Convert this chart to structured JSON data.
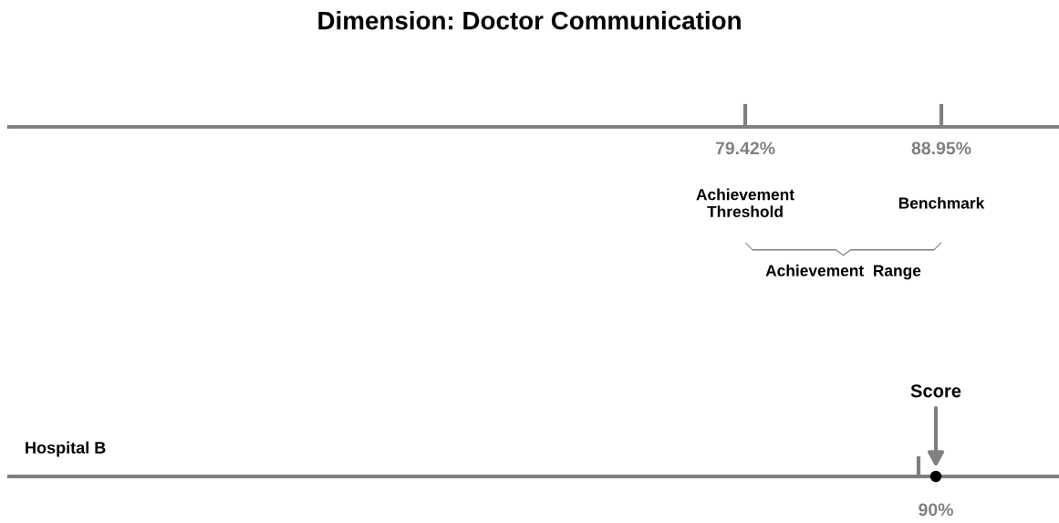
{
  "chart_data": [
    {
      "type": "other",
      "title": "Dimension: Doctor Communication",
      "categories": [
        "Achievement\nThreshold",
        "Benchmark"
      ],
      "values": [
        79.42,
        88.95
      ],
      "value_labels": [
        "79.42%",
        "88.95%"
      ],
      "annotations": [
        "Achievement  Range"
      ]
    },
    {
      "type": "other",
      "categories": [
        "Hospital B"
      ],
      "values": [
        90
      ],
      "value_labels": [
        "90%"
      ],
      "annotations": [
        "Score"
      ]
    }
  ]
}
